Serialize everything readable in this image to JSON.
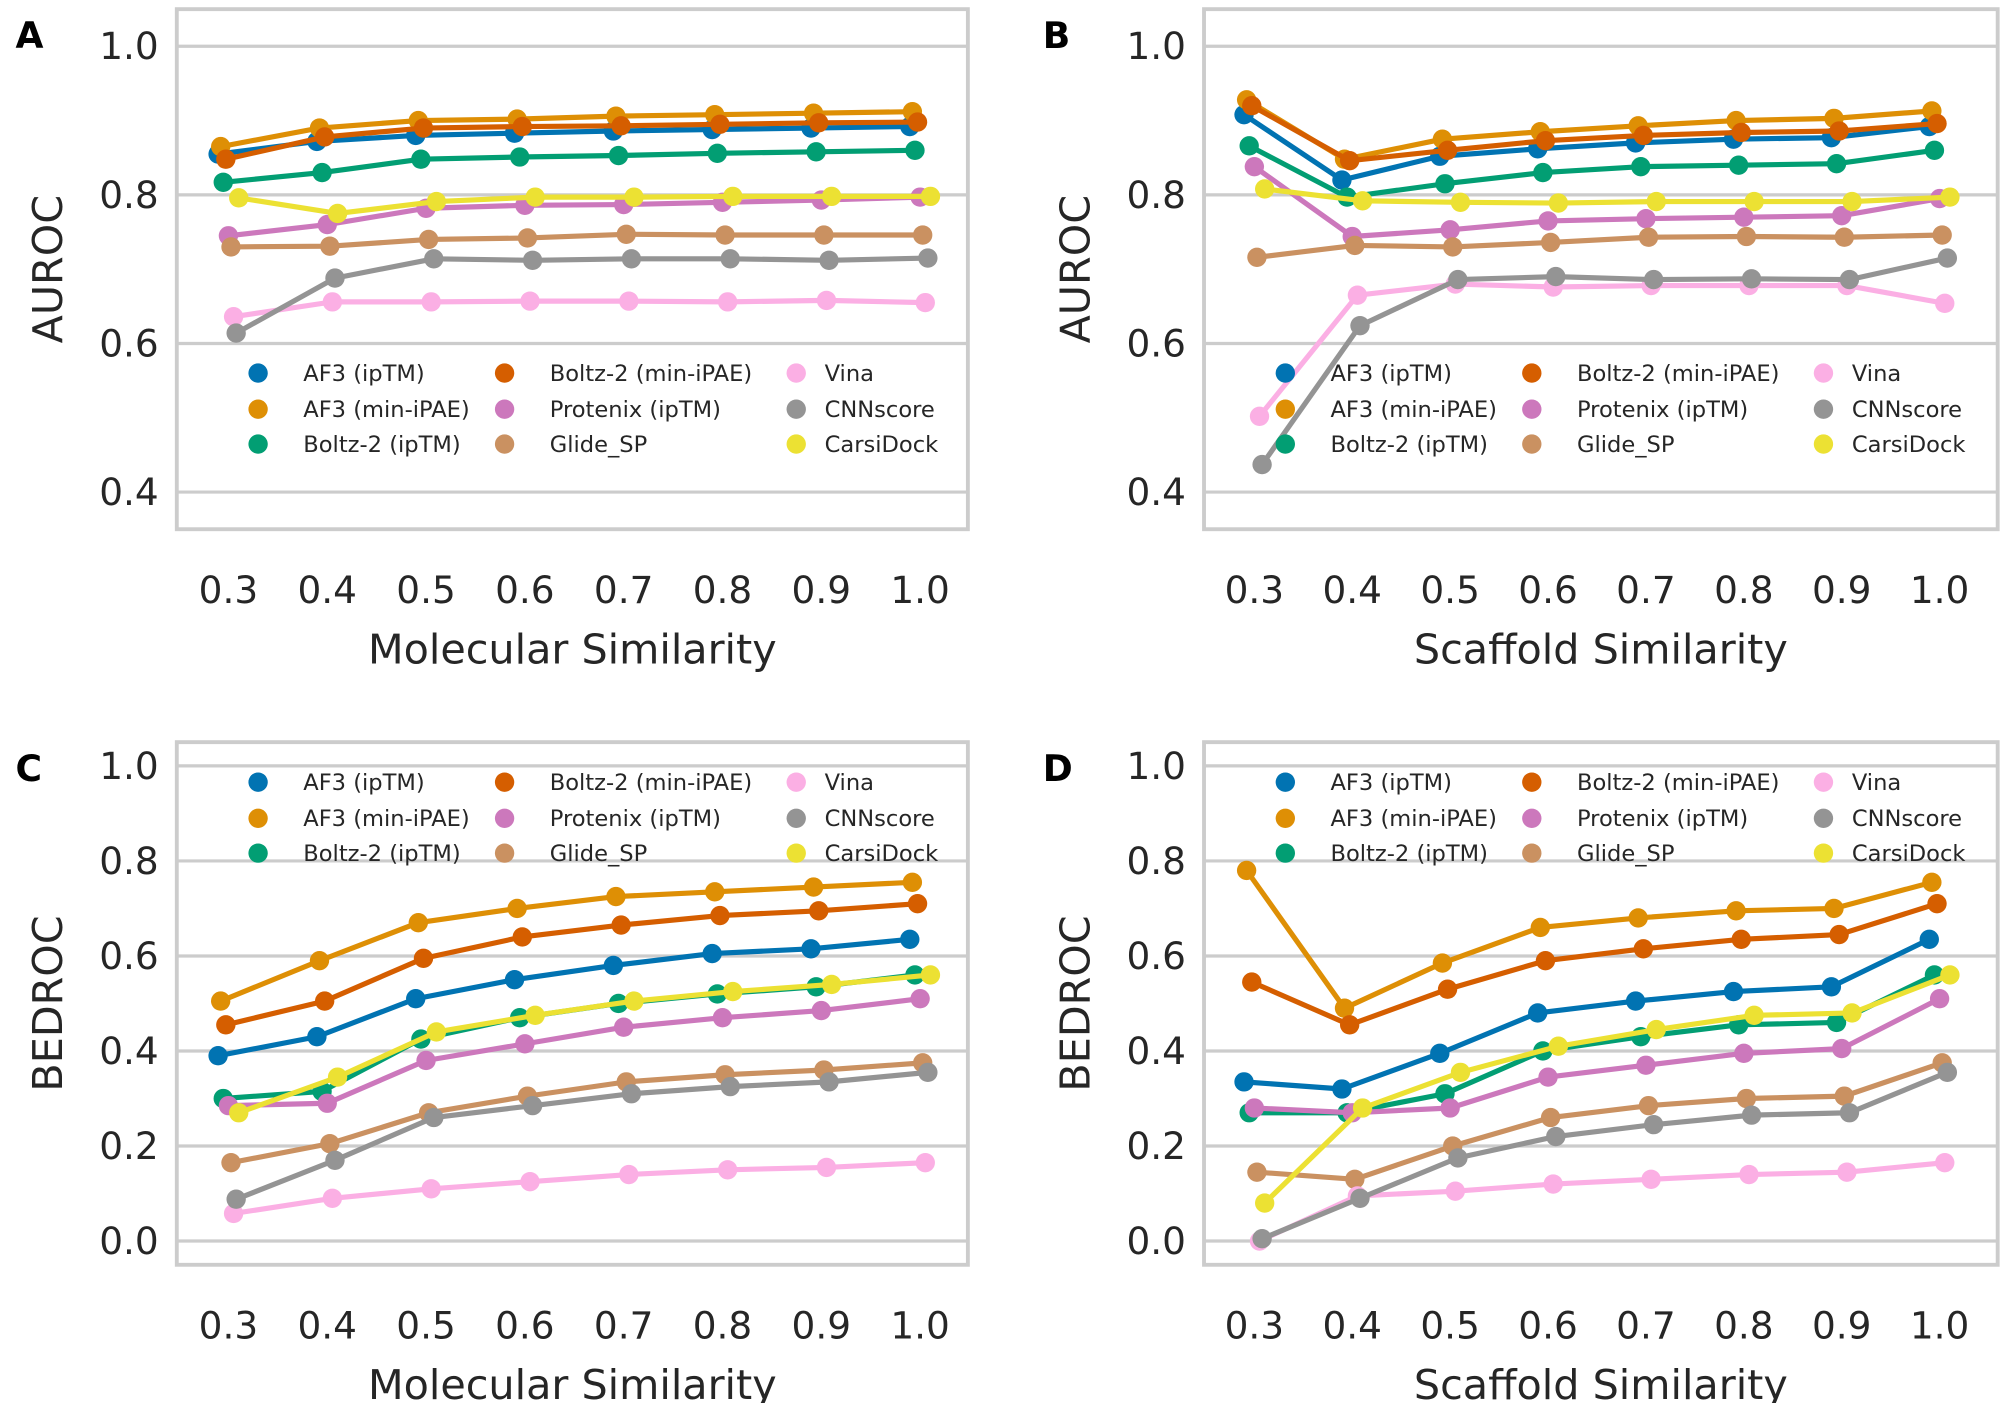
{
  "chart_data": [
    {
      "panel": "A",
      "type": "line",
      "xlabel": "Molecular Similarity",
      "ylabel": "AUROC",
      "x": [
        0.3,
        0.4,
        0.5,
        0.6,
        0.7,
        0.8,
        0.9,
        1.0
      ],
      "x_tick_labels": [
        "0.3",
        "0.4",
        "0.5",
        "0.6",
        "0.7",
        "0.8",
        "0.9",
        "1.0"
      ],
      "yticks": [
        "0.4",
        "0.6",
        "0.8",
        "1.0"
      ],
      "ytick_values": [
        0.4,
        0.6,
        0.8,
        1.0
      ],
      "ylim": [
        0.35,
        1.05
      ],
      "grid": true,
      "legend_placement": "lower-center",
      "series": [
        {
          "name": "AF3 (ipTM)",
          "values": [
            0.855,
            0.872,
            0.88,
            0.883,
            0.886,
            0.888,
            0.89,
            0.892
          ]
        },
        {
          "name": "AF3 (min-iPAE)",
          "values": [
            0.865,
            0.89,
            0.9,
            0.902,
            0.906,
            0.908,
            0.91,
            0.912
          ]
        },
        {
          "name": "Boltz-2 (ipTM)",
          "values": [
            0.817,
            0.83,
            0.848,
            0.851,
            0.853,
            0.856,
            0.858,
            0.86
          ]
        },
        {
          "name": "Boltz-2 (min-iPAE)",
          "values": [
            0.848,
            0.878,
            0.89,
            0.892,
            0.893,
            0.895,
            0.897,
            0.898
          ]
        },
        {
          "name": "Protenix (ipTM)",
          "values": [
            0.745,
            0.76,
            0.782,
            0.786,
            0.787,
            0.79,
            0.793,
            0.797
          ]
        },
        {
          "name": "Glide_SP",
          "values": [
            0.73,
            0.731,
            0.74,
            0.742,
            0.747,
            0.746,
            0.746,
            0.746
          ]
        },
        {
          "name": "Vina",
          "values": [
            0.636,
            0.656,
            0.656,
            0.657,
            0.657,
            0.656,
            0.658,
            0.655
          ]
        },
        {
          "name": "CNNscore",
          "values": [
            0.614,
            0.688,
            0.714,
            0.712,
            0.714,
            0.714,
            0.712,
            0.715
          ]
        },
        {
          "name": "CarsiDock",
          "values": [
            0.796,
            0.775,
            0.791,
            0.797,
            0.797,
            0.798,
            0.798,
            0.798
          ]
        }
      ]
    },
    {
      "panel": "B",
      "type": "line",
      "xlabel": "Scaffold Similarity",
      "ylabel": "AUROC",
      "x": [
        0.3,
        0.4,
        0.5,
        0.6,
        0.7,
        0.8,
        0.9,
        1.0
      ],
      "x_tick_labels": [
        "0.3",
        "0.4",
        "0.5",
        "0.6",
        "0.7",
        "0.8",
        "0.9",
        "1.0"
      ],
      "yticks": [
        "0.4",
        "0.6",
        "0.8",
        "1.0"
      ],
      "ytick_values": [
        0.4,
        0.6,
        0.8,
        1.0
      ],
      "ylim": [
        0.35,
        1.05
      ],
      "grid": true,
      "legend_placement": "lower-center",
      "series": [
        {
          "name": "AF3 (ipTM)",
          "values": [
            0.908,
            0.82,
            0.852,
            0.862,
            0.87,
            0.875,
            0.877,
            0.892
          ]
        },
        {
          "name": "AF3 (min-iPAE)",
          "values": [
            0.928,
            0.848,
            0.875,
            0.885,
            0.893,
            0.9,
            0.903,
            0.913
          ]
        },
        {
          "name": "Boltz-2 (ipTM)",
          "values": [
            0.866,
            0.797,
            0.815,
            0.83,
            0.838,
            0.84,
            0.842,
            0.86
          ]
        },
        {
          "name": "Boltz-2 (min-iPAE)",
          "values": [
            0.92,
            0.846,
            0.86,
            0.873,
            0.88,
            0.884,
            0.886,
            0.896
          ]
        },
        {
          "name": "Protenix (ipTM)",
          "values": [
            0.838,
            0.744,
            0.753,
            0.765,
            0.768,
            0.77,
            0.772,
            0.795
          ]
        },
        {
          "name": "Glide_SP",
          "values": [
            0.716,
            0.732,
            0.73,
            0.736,
            0.743,
            0.744,
            0.743,
            0.746
          ]
        },
        {
          "name": "Vina",
          "values": [
            0.502,
            0.665,
            0.68,
            0.676,
            0.678,
            0.678,
            0.678,
            0.654
          ]
        },
        {
          "name": "CNNscore",
          "values": [
            0.437,
            0.624,
            0.686,
            0.69,
            0.686,
            0.687,
            0.686,
            0.715
          ]
        },
        {
          "name": "CarsiDock",
          "values": [
            0.808,
            0.792,
            0.79,
            0.789,
            0.791,
            0.791,
            0.791,
            0.797
          ]
        }
      ]
    },
    {
      "panel": "C",
      "type": "line",
      "xlabel": "Molecular Similarity",
      "ylabel": "BEDROC",
      "x": [
        0.3,
        0.4,
        0.5,
        0.6,
        0.7,
        0.8,
        0.9,
        1.0
      ],
      "x_tick_labels": [
        "0.3",
        "0.4",
        "0.5",
        "0.6",
        "0.7",
        "0.8",
        "0.9",
        "1.0"
      ],
      "yticks": [
        "0.0",
        "0.2",
        "0.4",
        "0.6",
        "0.8",
        "1.0"
      ],
      "ytick_values": [
        0,
        0.2,
        0.4,
        0.6,
        0.8,
        1.0
      ],
      "ylim": [
        -0.05,
        1.05
      ],
      "grid": true,
      "legend_placement": "upper-center",
      "series": [
        {
          "name": "AF3 (ipTM)",
          "values": [
            0.39,
            0.43,
            0.51,
            0.55,
            0.58,
            0.605,
            0.615,
            0.635
          ]
        },
        {
          "name": "AF3 (min-iPAE)",
          "values": [
            0.505,
            0.59,
            0.67,
            0.7,
            0.725,
            0.735,
            0.745,
            0.755
          ]
        },
        {
          "name": "Boltz-2 (ipTM)",
          "values": [
            0.3,
            0.315,
            0.425,
            0.47,
            0.5,
            0.52,
            0.535,
            0.56
          ]
        },
        {
          "name": "Boltz-2 (min-iPAE)",
          "values": [
            0.455,
            0.505,
            0.595,
            0.64,
            0.665,
            0.685,
            0.695,
            0.71
          ]
        },
        {
          "name": "Protenix (ipTM)",
          "values": [
            0.285,
            0.29,
            0.38,
            0.415,
            0.45,
            0.47,
            0.485,
            0.51
          ]
        },
        {
          "name": "Glide_SP",
          "values": [
            0.165,
            0.205,
            0.27,
            0.305,
            0.335,
            0.35,
            0.36,
            0.375
          ]
        },
        {
          "name": "Vina",
          "values": [
            0.058,
            0.09,
            0.11,
            0.125,
            0.14,
            0.15,
            0.155,
            0.165
          ]
        },
        {
          "name": "CNNscore",
          "values": [
            0.088,
            0.17,
            0.26,
            0.285,
            0.31,
            0.325,
            0.335,
            0.355
          ]
        },
        {
          "name": "CarsiDock",
          "values": [
            0.27,
            0.345,
            0.44,
            0.475,
            0.505,
            0.525,
            0.54,
            0.56
          ]
        }
      ]
    },
    {
      "panel": "D",
      "type": "line",
      "xlabel": "Scaffold Similarity",
      "ylabel": "BEDROC",
      "x": [
        0.3,
        0.4,
        0.5,
        0.6,
        0.7,
        0.8,
        0.9,
        1.0
      ],
      "x_tick_labels": [
        "0.3",
        "0.4",
        "0.5",
        "0.6",
        "0.7",
        "0.8",
        "0.9",
        "1.0"
      ],
      "yticks": [
        "0.0",
        "0.2",
        "0.4",
        "0.6",
        "0.8",
        "1.0"
      ],
      "ytick_values": [
        0,
        0.2,
        0.4,
        0.6,
        0.8,
        1.0
      ],
      "ylim": [
        -0.05,
        1.05
      ],
      "grid": true,
      "legend_placement": "upper-center",
      "series": [
        {
          "name": "AF3 (ipTM)",
          "values": [
            0.335,
            0.32,
            0.395,
            0.48,
            0.505,
            0.525,
            0.535,
            0.635
          ]
        },
        {
          "name": "AF3 (min-iPAE)",
          "values": [
            0.78,
            0.49,
            0.585,
            0.66,
            0.68,
            0.695,
            0.7,
            0.755
          ]
        },
        {
          "name": "Boltz-2 (ipTM)",
          "values": [
            0.27,
            0.27,
            0.31,
            0.4,
            0.43,
            0.455,
            0.46,
            0.56
          ]
        },
        {
          "name": "Boltz-2 (min-iPAE)",
          "values": [
            0.545,
            0.455,
            0.53,
            0.59,
            0.615,
            0.635,
            0.645,
            0.71
          ]
        },
        {
          "name": "Protenix (ipTM)",
          "values": [
            0.28,
            0.27,
            0.28,
            0.345,
            0.37,
            0.395,
            0.405,
            0.51
          ]
        },
        {
          "name": "Glide_SP",
          "values": [
            0.145,
            0.13,
            0.2,
            0.26,
            0.285,
            0.3,
            0.305,
            0.375
          ]
        },
        {
          "name": "Vina",
          "values": [
            0.0,
            0.095,
            0.105,
            0.12,
            0.13,
            0.14,
            0.145,
            0.165
          ]
        },
        {
          "name": "CNNscore",
          "values": [
            0.005,
            0.09,
            0.175,
            0.22,
            0.245,
            0.265,
            0.27,
            0.355
          ]
        },
        {
          "name": "CarsiDock",
          "values": [
            0.08,
            0.28,
            0.355,
            0.41,
            0.445,
            0.475,
            0.48,
            0.56
          ]
        }
      ]
    }
  ],
  "colors": [
    "#0173b2",
    "#de8f05",
    "#029e73",
    "#d55e00",
    "#cc78bc",
    "#ca9161",
    "#fbafe4",
    "#949494",
    "#ece133"
  ]
}
